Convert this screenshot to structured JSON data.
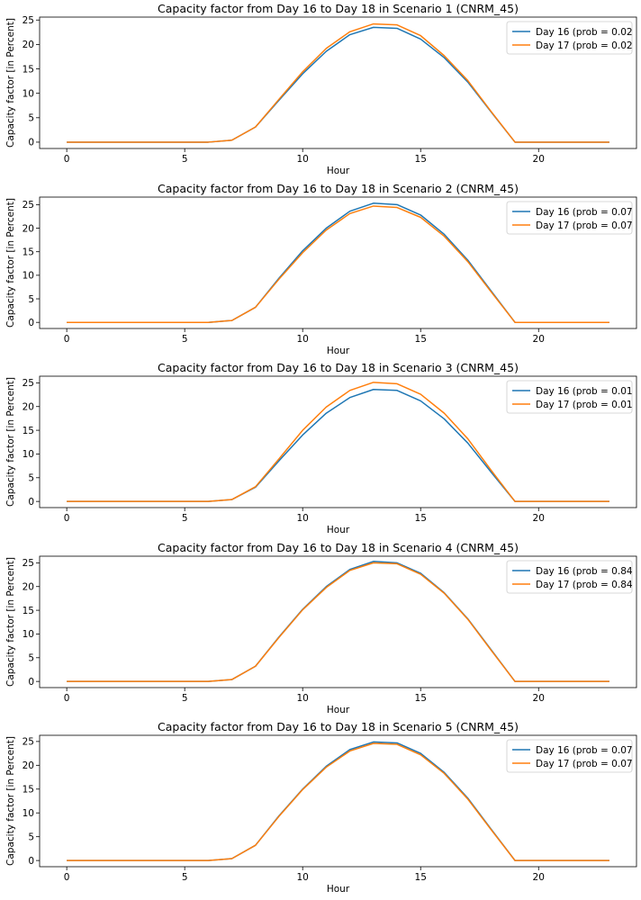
{
  "chart_data": [
    {
      "type": "line",
      "title": "Capacity factor from Day 16 to Day 18 in Scenario 1 (CNRM_45)",
      "xlabel": "Hour",
      "ylabel": "Capacity factor [in Percent]",
      "xticks": [
        0,
        5,
        10,
        15,
        20
      ],
      "yticks": [
        0,
        5,
        10,
        15,
        20,
        25
      ],
      "xlim": [
        -1.15,
        24.15
      ],
      "ylim": [
        -1.3,
        25.6
      ],
      "legend_position": "top-right",
      "grid": false,
      "x": [
        0,
        1,
        2,
        3,
        4,
        5,
        6,
        7,
        8,
        9,
        10,
        11,
        12,
        13,
        14,
        15,
        16,
        17,
        18,
        19,
        20,
        21,
        22,
        23
      ],
      "series": [
        {
          "name": "Day 16 (prob = 0.02",
          "color": "#1f77b4",
          "values": [
            0,
            0,
            0,
            0,
            0,
            0,
            0,
            0.4,
            3.1,
            8.6,
            14.0,
            18.6,
            22.0,
            23.5,
            23.3,
            21.1,
            17.3,
            12.3,
            6.1,
            0,
            0,
            0,
            0,
            0
          ]
        },
        {
          "name": "Day 17 (prob = 0.02",
          "color": "#ff7f0e",
          "values": [
            0,
            0,
            0,
            0,
            0,
            0,
            0,
            0.4,
            3.1,
            8.8,
            14.4,
            19.2,
            22.6,
            24.2,
            24.0,
            21.8,
            17.7,
            12.6,
            6.2,
            0,
            0,
            0,
            0,
            0
          ]
        }
      ]
    },
    {
      "type": "line",
      "title": "Capacity factor from Day 16 to Day 18 in Scenario 2 (CNRM_45)",
      "xlabel": "Hour",
      "ylabel": "Capacity factor [in Percent]",
      "xticks": [
        0,
        5,
        10,
        15,
        20
      ],
      "yticks": [
        0,
        5,
        10,
        15,
        20,
        25
      ],
      "xlim": [
        -1.15,
        24.15
      ],
      "ylim": [
        -1.3,
        26.6
      ],
      "legend_position": "top-right",
      "grid": false,
      "x": [
        0,
        1,
        2,
        3,
        4,
        5,
        6,
        7,
        8,
        9,
        10,
        11,
        12,
        13,
        14,
        15,
        16,
        17,
        18,
        19,
        20,
        21,
        22,
        23
      ],
      "series": [
        {
          "name": "Day 16 (prob = 0.07",
          "color": "#1f77b4",
          "values": [
            0,
            0,
            0,
            0,
            0,
            0,
            0,
            0.4,
            3.2,
            9.4,
            15.2,
            20.0,
            23.6,
            25.3,
            25.0,
            22.8,
            18.7,
            13.2,
            6.6,
            0,
            0,
            0,
            0,
            0
          ]
        },
        {
          "name": "Day 17 (prob = 0.07",
          "color": "#ff7f0e",
          "values": [
            0,
            0,
            0,
            0,
            0,
            0,
            0,
            0.4,
            3.2,
            9.2,
            14.8,
            19.6,
            23.1,
            24.7,
            24.4,
            22.3,
            18.3,
            12.9,
            6.4,
            0,
            0,
            0,
            0,
            0
          ]
        }
      ]
    },
    {
      "type": "line",
      "title": "Capacity factor from Day 16 to Day 18 in Scenario 3 (CNRM_45)",
      "xlabel": "Hour",
      "ylabel": "Capacity factor [in Percent]",
      "xticks": [
        0,
        5,
        10,
        15,
        20
      ],
      "yticks": [
        0,
        5,
        10,
        15,
        20,
        25
      ],
      "xlim": [
        -1.15,
        24.15
      ],
      "ylim": [
        -1.3,
        26.4
      ],
      "legend_position": "top-right",
      "grid": false,
      "x": [
        0,
        1,
        2,
        3,
        4,
        5,
        6,
        7,
        8,
        9,
        10,
        11,
        12,
        13,
        14,
        15,
        16,
        17,
        18,
        19,
        20,
        21,
        22,
        23
      ],
      "series": [
        {
          "name": "Day 16 (prob = 0.01",
          "color": "#1f77b4",
          "values": [
            0,
            0,
            0,
            0,
            0,
            0,
            0,
            0.4,
            3.0,
            8.6,
            14.0,
            18.6,
            21.9,
            23.6,
            23.4,
            21.2,
            17.4,
            12.3,
            6.1,
            0,
            0,
            0,
            0,
            0
          ]
        },
        {
          "name": "Day 17 (prob = 0.01",
          "color": "#ff7f0e",
          "values": [
            0,
            0,
            0,
            0,
            0,
            0,
            0,
            0.4,
            3.1,
            9.0,
            15.0,
            19.9,
            23.4,
            25.1,
            24.8,
            22.6,
            18.6,
            13.2,
            6.5,
            0,
            0,
            0,
            0,
            0
          ]
        }
      ]
    },
    {
      "type": "line",
      "title": "Capacity factor from Day 16 to Day 18 in Scenario 4 (CNRM_45)",
      "xlabel": "Hour",
      "ylabel": "Capacity factor [in Percent]",
      "xticks": [
        0,
        5,
        10,
        15,
        20
      ],
      "yticks": [
        0,
        5,
        10,
        15,
        20,
        25
      ],
      "xlim": [
        -1.15,
        24.15
      ],
      "ylim": [
        -1.3,
        26.4
      ],
      "legend_position": "top-right",
      "grid": false,
      "x": [
        0,
        1,
        2,
        3,
        4,
        5,
        6,
        7,
        8,
        9,
        10,
        11,
        12,
        13,
        14,
        15,
        16,
        17,
        18,
        19,
        20,
        21,
        22,
        23
      ],
      "series": [
        {
          "name": "Day 16 (prob = 0.84",
          "color": "#1f77b4",
          "values": [
            0,
            0,
            0,
            0,
            0,
            0,
            0,
            0.4,
            3.2,
            9.4,
            15.2,
            20.0,
            23.6,
            25.3,
            25.0,
            22.8,
            18.7,
            13.2,
            6.6,
            0,
            0,
            0,
            0,
            0
          ]
        },
        {
          "name": "Day 17 (prob = 0.84",
          "color": "#ff7f0e",
          "values": [
            0,
            0,
            0,
            0,
            0,
            0,
            0,
            0.4,
            3.2,
            9.3,
            15.1,
            19.8,
            23.4,
            25.0,
            24.8,
            22.6,
            18.6,
            13.1,
            6.5,
            0,
            0,
            0,
            0,
            0
          ]
        }
      ]
    },
    {
      "type": "line",
      "title": "Capacity factor from Day 16 to Day 18 in Scenario 5 (CNRM_45)",
      "xlabel": "Hour",
      "ylabel": "Capacity factor [in Percent]",
      "xticks": [
        0,
        5,
        10,
        15,
        20
      ],
      "yticks": [
        0,
        5,
        10,
        15,
        20,
        25
      ],
      "xlim": [
        -1.15,
        24.15
      ],
      "ylim": [
        -1.3,
        26.3
      ],
      "legend_position": "top-right",
      "grid": false,
      "x": [
        0,
        1,
        2,
        3,
        4,
        5,
        6,
        7,
        8,
        9,
        10,
        11,
        12,
        13,
        14,
        15,
        16,
        17,
        18,
        19,
        20,
        21,
        22,
        23
      ],
      "series": [
        {
          "name": "Day 16 (prob = 0.07",
          "color": "#1f77b4",
          "values": [
            0,
            0,
            0,
            0,
            0,
            0,
            0,
            0.4,
            3.2,
            9.4,
            15.0,
            19.8,
            23.3,
            24.9,
            24.7,
            22.5,
            18.5,
            13.1,
            6.5,
            0,
            0,
            0,
            0,
            0
          ]
        },
        {
          "name": "Day 17 (prob = 0.07",
          "color": "#ff7f0e",
          "values": [
            0,
            0,
            0,
            0,
            0,
            0,
            0,
            0.4,
            3.2,
            9.3,
            14.9,
            19.6,
            23.0,
            24.6,
            24.4,
            22.2,
            18.3,
            12.9,
            6.4,
            0,
            0,
            0,
            0,
            0
          ]
        }
      ]
    }
  ]
}
